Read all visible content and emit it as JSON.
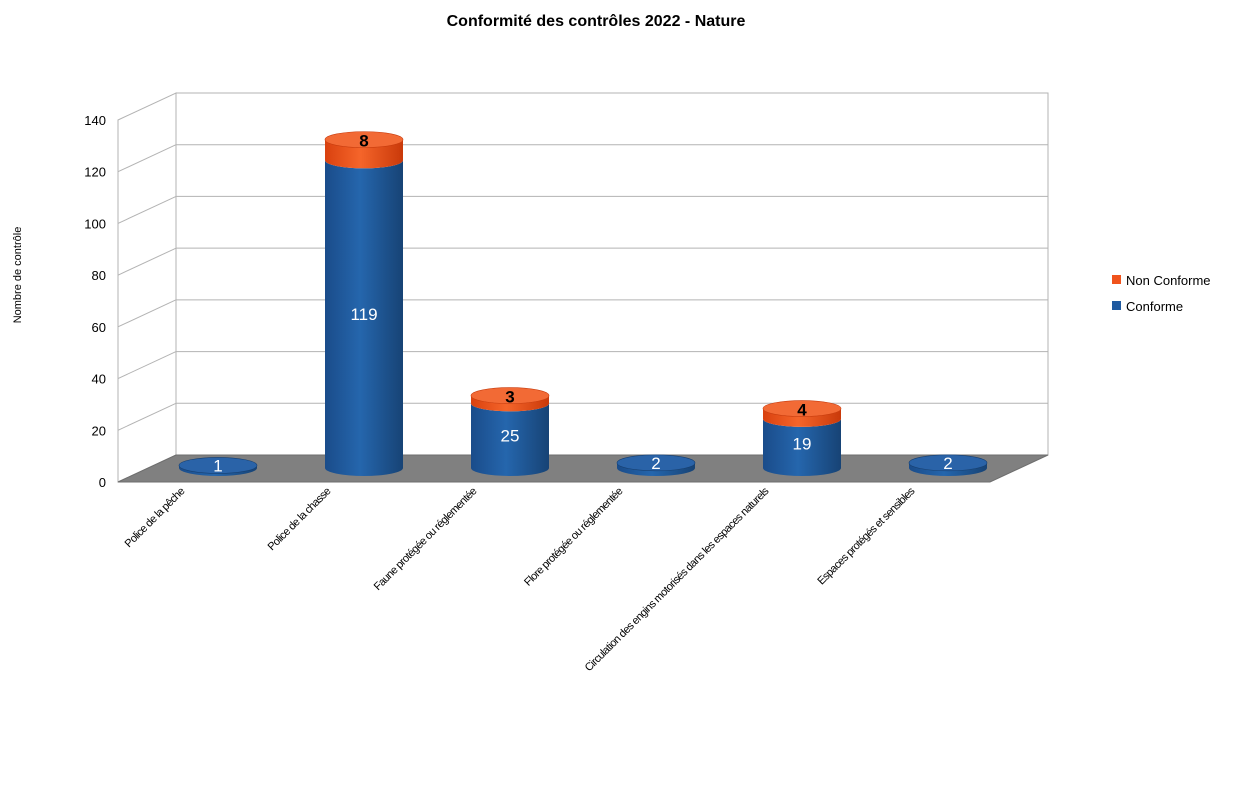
{
  "chart_data": {
    "type": "bar",
    "title": "Conformité des contrôles 2022 - Nature",
    "ylabel": "Nombre de contrôle",
    "xlabel": "",
    "ylim": [
      0,
      140
    ],
    "yticks": [
      "0",
      "20",
      "40",
      "60",
      "80",
      "100",
      "120",
      "140"
    ],
    "grid": true,
    "legend_position": "right",
    "stacked": true,
    "categories": [
      "Police de la pêche",
      "Police de la chasse",
      "Faune protégée ou réglementée",
      "Flore protégée ou réglementée",
      "Circulation des engins motorisés dans les espaces naturels",
      "Espaces protégés et sensibles"
    ],
    "series": [
      {
        "name": "Conforme",
        "color": "#1f5aa0",
        "values": [
          1,
          119,
          25,
          2,
          19,
          2
        ]
      },
      {
        "name": "Non Conforme",
        "color": "#f0531c",
        "values": [
          0,
          8,
          3,
          0,
          4,
          0
        ]
      }
    ],
    "data_labels": {
      "Conforme": [
        "1",
        "119",
        "25",
        "2",
        "19",
        "2"
      ],
      "Non Conforme": [
        "",
        "8",
        "3",
        "",
        "4",
        ""
      ]
    },
    "legend": [
      "Non Conforme",
      "Conforme"
    ]
  }
}
